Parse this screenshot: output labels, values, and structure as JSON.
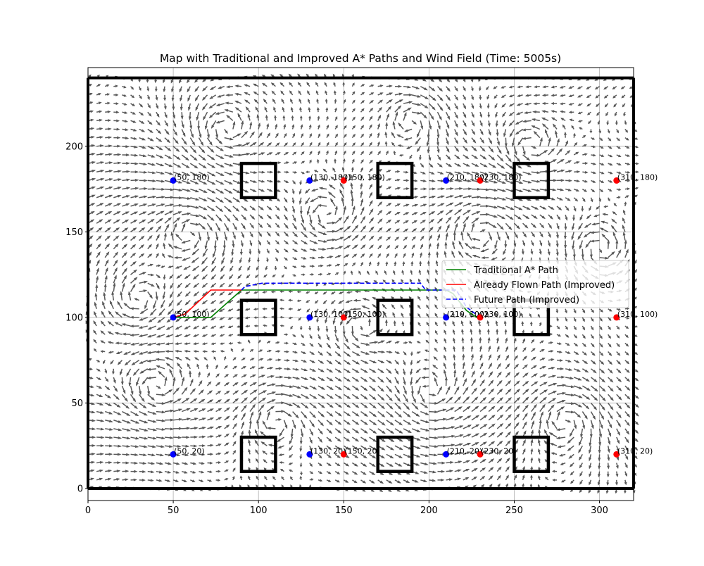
{
  "chart_data": {
    "type": "line",
    "title": "Map with Traditional and Improved A* Paths and Wind Field (Time: 5005s)",
    "xlabel": "",
    "ylabel": "",
    "xlim": [
      0,
      320
    ],
    "ylim": [
      -7,
      246
    ],
    "x_ticks": [
      0,
      50,
      100,
      150,
      200,
      250,
      300
    ],
    "y_ticks": [
      0,
      50,
      100,
      150,
      200
    ],
    "grid": true,
    "legend_position": "center-right",
    "border": {
      "x": [
        0,
        320
      ],
      "y": [
        0,
        240
      ]
    },
    "obstacles": [
      {
        "x0": 90,
        "y0": 170,
        "x1": 110,
        "y1": 190
      },
      {
        "x0": 170,
        "y0": 170,
        "x1": 190,
        "y1": 190
      },
      {
        "x0": 250,
        "y0": 170,
        "x1": 270,
        "y1": 190
      },
      {
        "x0": 90,
        "y0": 90,
        "x1": 110,
        "y1": 110
      },
      {
        "x0": 170,
        "y0": 90,
        "x1": 190,
        "y1": 110
      },
      {
        "x0": 250,
        "y0": 90,
        "x1": 270,
        "y1": 110
      },
      {
        "x0": 90,
        "y0": 10,
        "x1": 110,
        "y1": 30
      },
      {
        "x0": 170,
        "y0": 10,
        "x1": 190,
        "y1": 30
      },
      {
        "x0": 250,
        "y0": 10,
        "x1": 270,
        "y1": 30
      }
    ],
    "points": [
      {
        "x": 50,
        "y": 180,
        "color": "blue",
        "label": "(50, 180)"
      },
      {
        "x": 130,
        "y": 180,
        "color": "blue",
        "label": "(130, 180)"
      },
      {
        "x": 150,
        "y": 180,
        "color": "red",
        "label": "(150, 180)"
      },
      {
        "x": 210,
        "y": 180,
        "color": "blue",
        "label": "(210, 180)"
      },
      {
        "x": 230,
        "y": 180,
        "color": "red",
        "label": "(230, 180)"
      },
      {
        "x": 310,
        "y": 180,
        "color": "red",
        "label": "(310, 180)"
      },
      {
        "x": 50,
        "y": 100,
        "color": "blue",
        "label": "(50, 100)"
      },
      {
        "x": 130,
        "y": 100,
        "color": "blue",
        "label": "(130, 100)"
      },
      {
        "x": 150,
        "y": 100,
        "color": "red",
        "label": "(150, 100)"
      },
      {
        "x": 210,
        "y": 100,
        "color": "blue",
        "label": "(210, 100)"
      },
      {
        "x": 230,
        "y": 100,
        "color": "red",
        "label": "(230, 100)"
      },
      {
        "x": 310,
        "y": 100,
        "color": "red",
        "label": "(310, 100)"
      },
      {
        "x": 50,
        "y": 20,
        "color": "blue",
        "label": "(50, 20)"
      },
      {
        "x": 130,
        "y": 20,
        "color": "blue",
        "label": "(130, 20)"
      },
      {
        "x": 150,
        "y": 20,
        "color": "red",
        "label": "(150, 20)"
      },
      {
        "x": 210,
        "y": 20,
        "color": "blue",
        "label": "(210, 20)"
      },
      {
        "x": 230,
        "y": 20,
        "color": "red",
        "label": "(230, 20)"
      },
      {
        "x": 310,
        "y": 20,
        "color": "red",
        "label": "(310, 20)"
      }
    ],
    "series": [
      {
        "name": "Traditional A* Path",
        "color": "#008000",
        "dash": "solid",
        "x": [
          50,
          72,
          90,
          100,
          210,
          214,
          222,
          228,
          230
        ],
        "y": [
          100,
          100,
          116,
          116,
          116,
          114,
          104,
          100,
          100
        ]
      },
      {
        "name": "Already Flown Path (Improved)",
        "color": "#ff0000",
        "dash": "solid",
        "x": [
          50,
          57,
          72,
          90
        ],
        "y": [
          100,
          102,
          116,
          116
        ]
      },
      {
        "name": "Future Path (Improved)",
        "color": "#0000ff",
        "dash": "dashed",
        "x": [
          90,
          92,
          102,
          195,
          198,
          216,
          222,
          230
        ],
        "y": [
          116,
          118,
          120,
          120,
          116,
          116,
          106,
          100
        ]
      }
    ],
    "wind_field": {
      "color": "#595959",
      "grid_spacing": 5,
      "x_range": [
        0,
        320
      ],
      "y_range": [
        0,
        240
      ]
    }
  }
}
